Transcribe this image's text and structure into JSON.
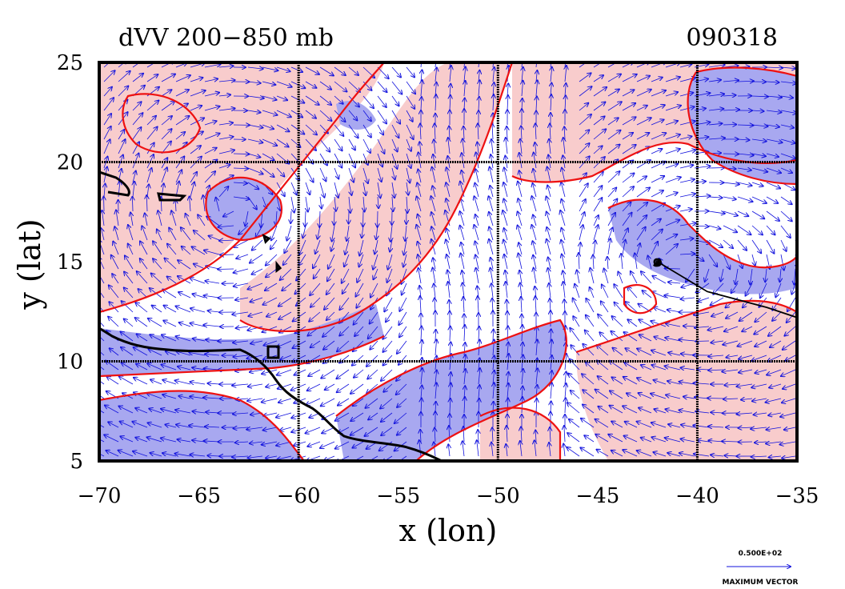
{
  "title_left": "dVV 200−850 mb",
  "title_right": "090318",
  "x_axis": {
    "label": "x (lon)",
    "range": [
      -70,
      -35
    ],
    "ticks": [
      -70,
      -65,
      -60,
      -55,
      -50,
      -45,
      -40,
      -35
    ],
    "tick_labels": [
      "−70",
      "−65",
      "−60",
      "−55",
      "−50",
      "−45",
      "−40",
      "−35"
    ]
  },
  "y_axis": {
    "label": "y (lat)",
    "range": [
      5,
      25
    ],
    "ticks": [
      5,
      10,
      15,
      20,
      25
    ],
    "tick_labels": [
      "5",
      "10",
      "15",
      "20",
      "25"
    ]
  },
  "gridlines": {
    "lon": [
      -60,
      -50,
      -40
    ],
    "lat": [
      10,
      20
    ]
  },
  "reference_vector": {
    "value": "0.500E+02",
    "label": "MAXIMUM VECTOR"
  },
  "colors": {
    "positive_fill": "#f8cccc",
    "negative_fill": "#a8a8f0",
    "contour": "#ee1111",
    "vectors": "#1111dd",
    "coastline": "#000000",
    "track": "#000000"
  },
  "storm_marker": {
    "lon": -42,
    "lat": 15
  },
  "storm_track": [
    [
      -42,
      15
    ],
    [
      -39.5,
      13.5
    ],
    [
      -36.5,
      12.7
    ],
    [
      -35,
      12.2
    ]
  ]
}
